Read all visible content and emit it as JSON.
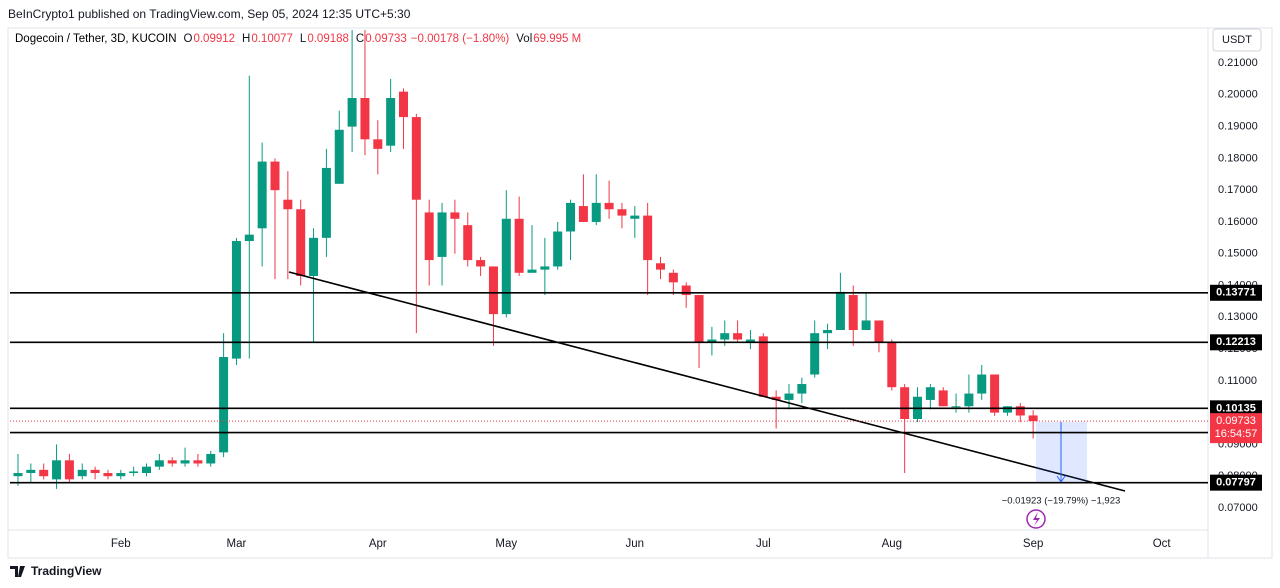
{
  "header": {
    "attribution": "BeInCrypto1 published on TradingView.com, Sep 05, 2024 12:35 UTC+5:30"
  },
  "chart_data": {
    "type": "candlestick",
    "symbol": "Dogecoin / Tether, 3D, KUCOIN",
    "ohlc_legend": [
      {
        "label": "O",
        "value": "0.09912"
      },
      {
        "label": "H",
        "value": "0.10077"
      },
      {
        "label": "L",
        "value": "0.09188"
      },
      {
        "label": "C",
        "value": "0.09733"
      }
    ],
    "change": "−0.00178 (−1.80%)",
    "volume_label": "Vol",
    "volume": "69.995 M",
    "currency": "USDT",
    "up_color": "#089981",
    "down_color": "#f23645",
    "categories": [
      null,
      null,
      null,
      null,
      null,
      null,
      null,
      null,
      "Feb",
      null,
      null,
      null,
      null,
      null,
      null,
      null,
      null,
      "Mar",
      null,
      null,
      null,
      null,
      null,
      null,
      null,
      null,
      null,
      null,
      "Apr",
      null,
      null,
      null,
      null,
      null,
      null,
      null,
      null,
      null,
      "May",
      null,
      null,
      null,
      null,
      null,
      null,
      null,
      null,
      null,
      "Jun",
      null,
      null,
      null,
      null,
      null,
      null,
      null,
      null,
      null,
      "Jul",
      null,
      null,
      null,
      null,
      null,
      null,
      null,
      null,
      null,
      "Aug",
      null,
      null,
      null,
      null,
      null,
      null,
      null,
      null,
      null,
      null,
      "Sep",
      null,
      null,
      null,
      null,
      null,
      null,
      null,
      null,
      null,
      "Oct"
    ],
    "open": [
      0.08,
      0.081,
      0.082,
      0.079,
      0.085,
      0.08,
      0.082,
      0.081,
      0.08,
      0.081,
      0.081,
      0.083,
      0.085,
      0.084,
      0.085,
      0.084,
      0.0875,
      0.117,
      0.154,
      0.158,
      0.179,
      0.167,
      0.164,
      0.143,
      0.155,
      0.172,
      0.19,
      0.199,
      0.186,
      0.184,
      0.201,
      0.193,
      0.163,
      0.149,
      0.163,
      0.159,
      0.148,
      0.146,
      0.131,
      0.161,
      0.144,
      0.145,
      0.146,
      0.157,
      0.165,
      0.16,
      0.166,
      0.164,
      0.161,
      0.162,
      0.147,
      0.144,
      0.14,
      0.137,
      0.122,
      0.123,
      0.125,
      0.122,
      0.124,
      0.105,
      0.104,
      0.106,
      0.112,
      0.125,
      0.126,
      0.137,
      0.126,
      0.129,
      0.122,
      0.108,
      0.098,
      0.104,
      0.107,
      0.102,
      0.102,
      0.106,
      0.112,
      0.1,
      0.102,
      0.09912,
      null,
      null,
      null,
      null,
      null,
      null,
      null,
      null,
      null,
      null
    ],
    "high": [
      0.087,
      0.084,
      0.084,
      0.09,
      0.087,
      0.084,
      0.083,
      0.082,
      0.082,
      0.083,
      0.084,
      0.087,
      0.086,
      0.089,
      0.087,
      0.088,
      0.125,
      0.155,
      0.206,
      0.185,
      0.18,
      0.176,
      0.167,
      0.158,
      0.183,
      0.195,
      0.222,
      0.222,
      0.192,
      0.205,
      0.202,
      0.194,
      0.167,
      0.166,
      0.167,
      0.163,
      0.149,
      0.146,
      0.17,
      0.168,
      0.159,
      0.155,
      0.16,
      0.167,
      0.175,
      0.175,
      0.173,
      0.166,
      0.165,
      0.166,
      0.149,
      0.145,
      0.141,
      0.137,
      0.127,
      0.129,
      0.129,
      0.126,
      0.125,
      0.107,
      0.109,
      0.111,
      0.129,
      0.128,
      0.144,
      0.14,
      0.138,
      0.129,
      0.123,
      0.109,
      0.108,
      0.109,
      0.108,
      0.106,
      0.112,
      0.115,
      0.112,
      0.102,
      0.103,
      0.10077,
      null,
      null,
      null,
      null,
      null,
      null,
      null,
      null,
      null,
      null
    ],
    "low": [
      0.077,
      0.078,
      0.079,
      0.076,
      0.078,
      0.079,
      0.079,
      0.079,
      0.079,
      0.08,
      0.08,
      0.082,
      0.083,
      0.083,
      0.083,
      0.083,
      0.086,
      0.115,
      0.117,
      0.146,
      0.142,
      0.142,
      0.14,
      0.122,
      0.149,
      0.172,
      0.182,
      0.181,
      0.175,
      0.182,
      0.183,
      0.125,
      0.14,
      0.14,
      0.15,
      0.146,
      0.143,
      0.121,
      0.13,
      0.143,
      0.144,
      0.137,
      0.145,
      0.148,
      0.16,
      0.159,
      0.161,
      0.158,
      0.155,
      0.137,
      0.142,
      0.137,
      0.133,
      0.114,
      0.118,
      0.121,
      0.122,
      0.12,
      0.105,
      0.095,
      0.101,
      0.103,
      0.111,
      0.12,
      0.126,
      0.121,
      0.126,
      0.119,
      0.107,
      0.081,
      0.097,
      0.101,
      0.102,
      0.1,
      0.1,
      0.104,
      0.099,
      0.099,
      0.097,
      0.09188,
      null,
      null,
      null,
      null,
      null,
      null,
      null,
      null,
      null,
      null
    ],
    "close": [
      0.081,
      0.082,
      0.08,
      0.085,
      0.079,
      0.082,
      0.081,
      0.08,
      0.081,
      0.0815,
      0.083,
      0.085,
      0.084,
      0.085,
      0.084,
      0.087,
      0.1175,
      0.154,
      0.156,
      0.179,
      0.17,
      0.164,
      0.143,
      0.155,
      0.177,
      0.189,
      0.199,
      0.186,
      0.183,
      0.199,
      0.193,
      0.167,
      0.148,
      0.163,
      0.161,
      0.148,
      0.146,
      0.131,
      0.161,
      0.144,
      0.145,
      0.146,
      0.157,
      0.166,
      0.16,
      0.166,
      0.164,
      0.162,
      0.162,
      0.148,
      0.145,
      0.141,
      0.137,
      0.122,
      0.123,
      0.125,
      0.123,
      0.123,
      0.105,
      0.104,
      0.106,
      0.109,
      0.125,
      0.126,
      0.138,
      0.126,
      0.129,
      0.122,
      0.108,
      0.098,
      0.105,
      0.108,
      0.102,
      0.102,
      0.106,
      0.112,
      0.1,
      0.102,
      0.0991,
      0.09733,
      null,
      null,
      null,
      null,
      null,
      null,
      null,
      null,
      null,
      null
    ],
    "ylim": [
      0.0637,
      0.2204
    ],
    "yticks": [
      {
        "value": 0.07,
        "label": "0.07000"
      },
      {
        "value": 0.08,
        "label": "0.08000"
      },
      {
        "value": 0.09,
        "label": "0.09000"
      },
      {
        "value": 0.1,
        "label": "0.10000"
      },
      {
        "value": 0.11,
        "label": "0.11000"
      },
      {
        "value": 0.12,
        "label": "0.12000"
      },
      {
        "value": 0.13,
        "label": "0.13000"
      },
      {
        "value": 0.14,
        "label": "0.14000"
      },
      {
        "value": 0.15,
        "label": "0.15000"
      },
      {
        "value": 0.16,
        "label": "0.16000"
      },
      {
        "value": 0.17,
        "label": "0.17000"
      },
      {
        "value": 0.18,
        "label": "0.18000"
      },
      {
        "value": 0.19,
        "label": "0.19000"
      },
      {
        "value": 0.2,
        "label": "0.20000"
      },
      {
        "value": 0.21,
        "label": "0.21000"
      }
    ],
    "levels": [
      0.13771,
      0.12213,
      0.10135,
      0.09373,
      0.07797
    ],
    "last_price": 0.09733,
    "countdown": "16:54:57",
    "measure_label": "−0.01923 (−19.79%) −1,923"
  },
  "footer": {
    "brand": "TradingView"
  }
}
